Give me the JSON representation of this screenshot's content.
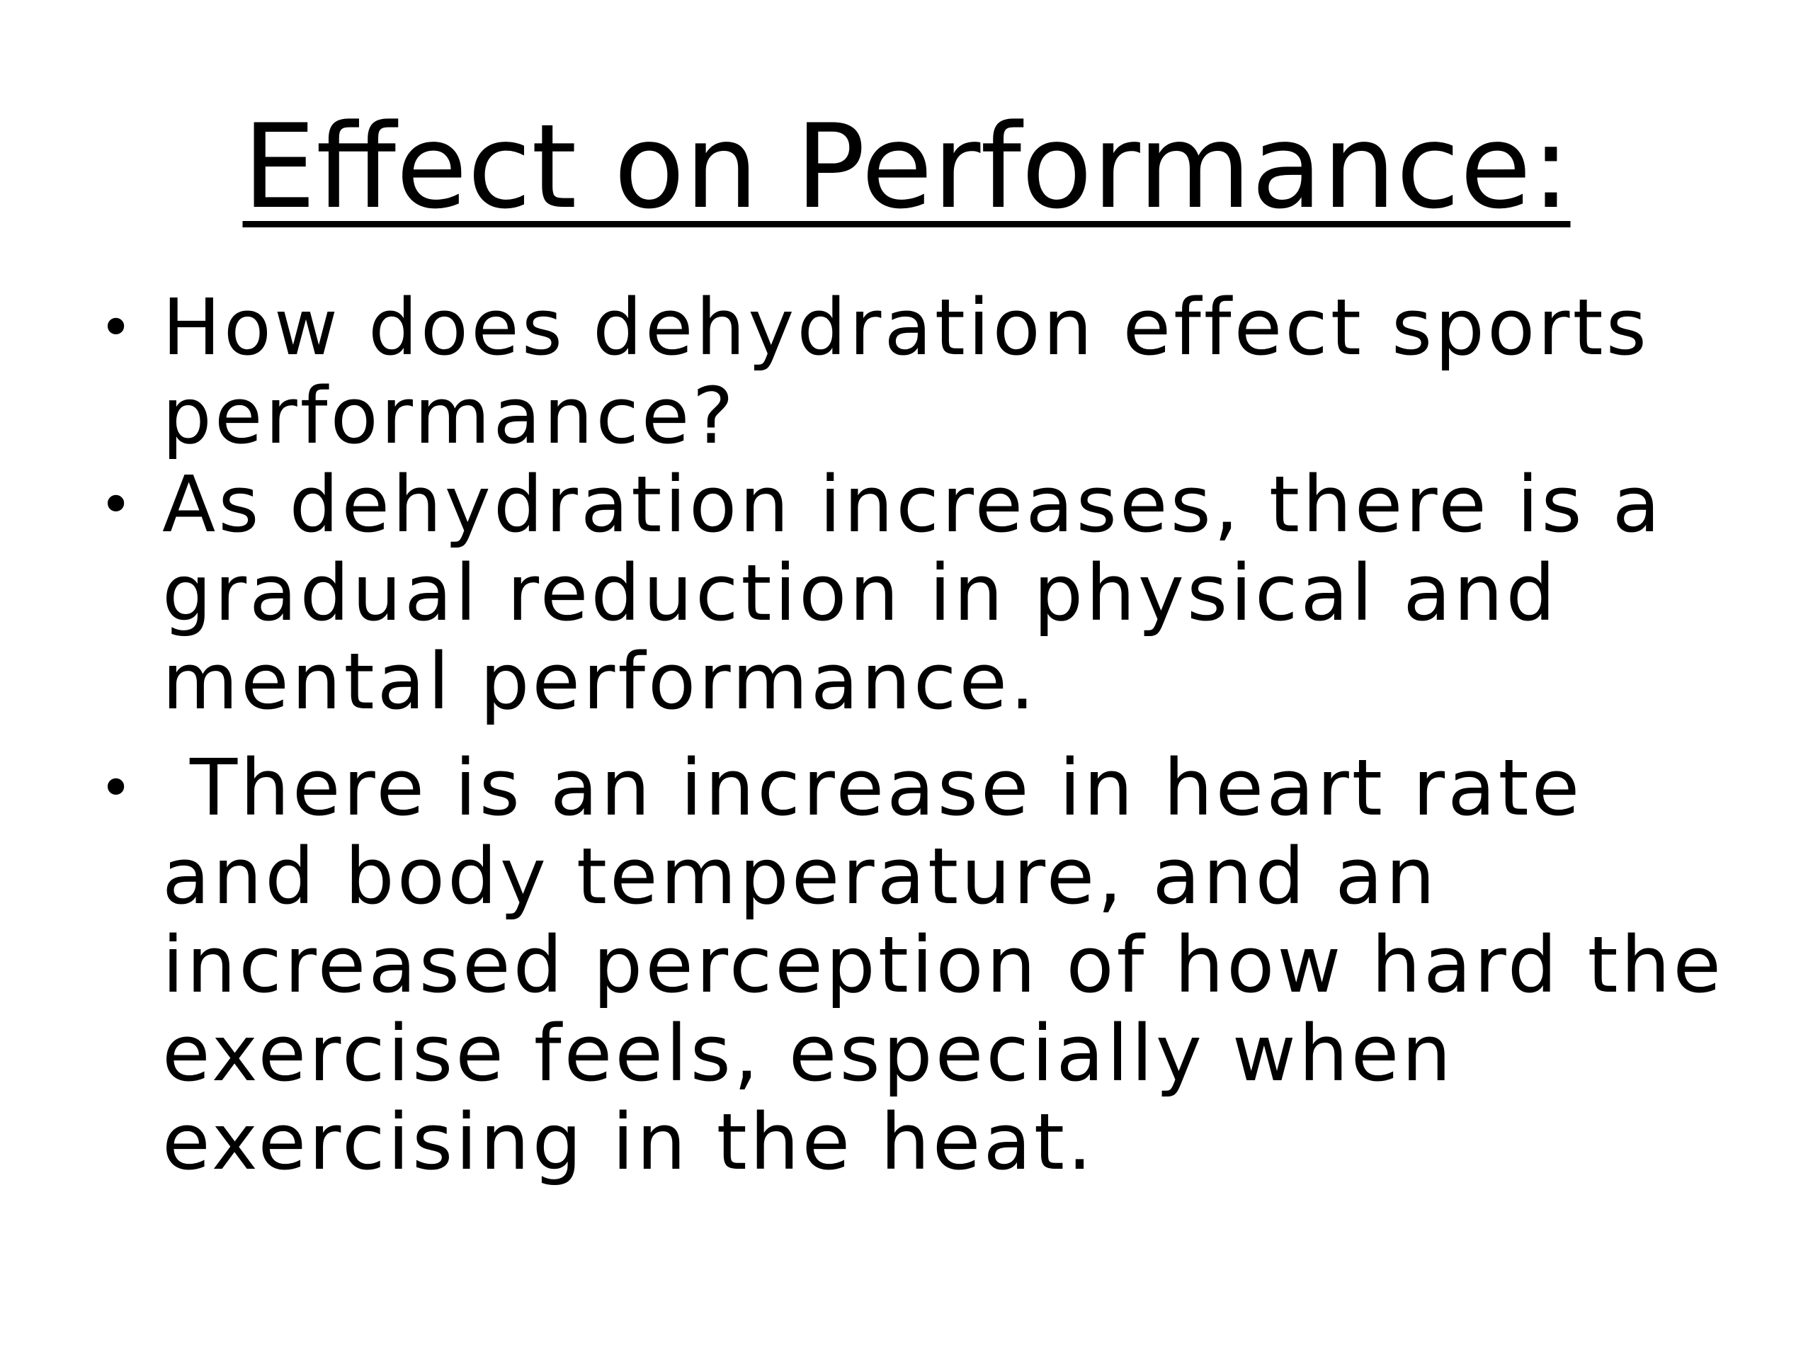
{
  "slide": {
    "title": "Effect on Performance:",
    "bullets": [
      "How does dehydration effect sports performance?",
      "As dehydration increases, there is a gradual reduction in physical and mental performance.",
      " There is an increase in heart rate and body temperature, and an increased perception of how hard the exercise feels, especially when exercising in the heat."
    ],
    "bullet_symbol": "•"
  }
}
